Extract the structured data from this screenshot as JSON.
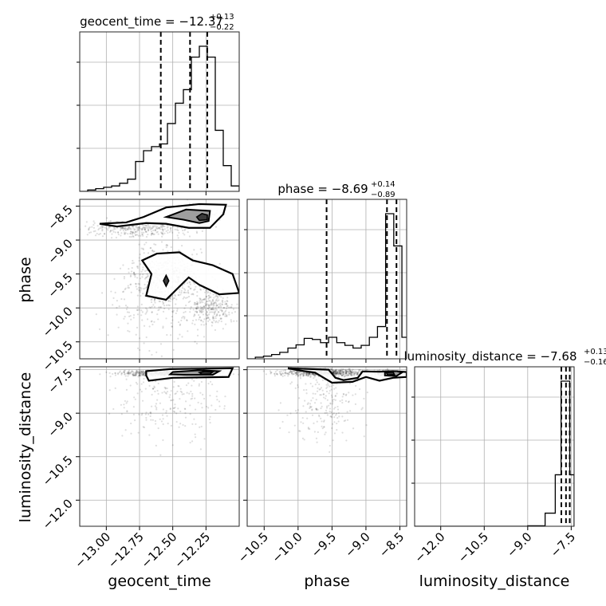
{
  "chart_data": {
    "type": "corner",
    "parameters": [
      "geocent_time",
      "phase",
      "luminosity_distance"
    ],
    "grid": true,
    "titles": [
      {
        "param": "geocent_time",
        "prefix": "geocent_time = ",
        "median": "−12.37",
        "plus": "+0.13",
        "minus": "−0.22"
      },
      {
        "param": "phase",
        "prefix": "phase = ",
        "median": "−8.69",
        "plus": "+0.14",
        "minus": "−0.89"
      },
      {
        "param": "luminosity_distance",
        "prefix": "luminosity_distance = ",
        "median": "−7.68",
        "plus": "+0.13",
        "minus": "−0.16"
      }
    ],
    "axes": {
      "geocent_time": {
        "range": [
          -13.2,
          -12.0
        ],
        "ticks": [
          -13.0,
          -12.75,
          -12.5,
          -12.25
        ],
        "tick_labels": [
          "−13.00",
          "−12.75",
          "−12.50",
          "−12.25"
        ],
        "label": "geocent_time"
      },
      "phase": {
        "range": [
          -10.75,
          -8.4
        ],
        "ticks": [
          -10.5,
          -10.0,
          -9.5,
          -9.0,
          -8.5
        ],
        "tick_labels": [
          "−10.5",
          "−10.0",
          "−9.5",
          "−9.0",
          "−8.5"
        ],
        "label": "phase"
      },
      "luminosity_distance": {
        "range": [
          -12.9,
          -7.4
        ],
        "ticks": [
          -12.0,
          -10.5,
          -9.0,
          -7.5
        ],
        "tick_labels": [
          "−12.0",
          "−10.5",
          "−9.0",
          "−7.5"
        ],
        "label": "luminosity_distance"
      }
    },
    "histograms": {
      "geocent_time": {
        "bin_edges": [
          -13.2,
          -13.14,
          -13.08,
          -13.02,
          -12.96,
          -12.9,
          -12.84,
          -12.78,
          -12.72,
          -12.66,
          -12.6,
          -12.54,
          -12.48,
          -12.42,
          -12.36,
          -12.3,
          -12.24,
          -12.18,
          -12.12,
          -12.06,
          -12.0
        ],
        "counts": [
          0,
          1,
          2,
          3,
          4,
          6,
          9,
          22,
          30,
          33,
          35,
          50,
          65,
          75,
          99,
          107,
          99,
          45,
          19,
          4
        ],
        "quantiles": [
          -12.59,
          -12.37,
          -12.24
        ]
      },
      "phase": {
        "bin_edges": [
          -10.75,
          -10.63,
          -10.51,
          -10.39,
          -10.27,
          -10.15,
          -10.03,
          -9.91,
          -9.79,
          -9.67,
          -9.55,
          -9.43,
          -9.31,
          -9.19,
          -9.07,
          -8.95,
          -8.83,
          -8.71,
          -8.59,
          -8.47,
          -8.35
        ],
        "counts": [
          0,
          3,
          5,
          8,
          12,
          20,
          26,
          38,
          36,
          30,
          40,
          30,
          25,
          20,
          25,
          40,
          60,
          270,
          210,
          40
        ],
        "quantiles": [
          -9.58,
          -8.69,
          -8.55
        ]
      },
      "luminosity_distance": {
        "bin_edges": [
          -12.9,
          -9.0,
          -8.4,
          -8.05,
          -7.85,
          -7.7,
          -7.55,
          -7.4
        ],
        "counts": [
          0,
          1,
          28,
          110,
          310,
          310,
          110
        ],
        "quantiles": [
          -7.84,
          -7.68,
          -7.55
        ]
      }
    },
    "scatter": {
      "geocent_time_vs_phase": {
        "clusters": [
          {
            "center": [
              -12.75,
              -8.83
            ],
            "spread": [
              0.28,
              0.1
            ],
            "n": 320
          },
          {
            "center": [
              -12.33,
              -8.65
            ],
            "spread": [
              0.14,
              0.14
            ],
            "n": 260
          },
          {
            "center": [
              -12.55,
              -9.55
            ],
            "spread": [
              0.22,
              0.38
            ],
            "n": 520
          },
          {
            "center": [
              -12.2,
              -10.0
            ],
            "spread": [
              0.14,
              0.22
            ],
            "n": 260
          },
          {
            "center": [
              -12.6,
              -10.0
            ],
            "spread": [
              0.35,
              0.5
            ],
            "n": 180
          }
        ]
      },
      "geocent_time_vs_luminosity_distance": {
        "clusters": [
          {
            "center": [
              -12.5,
              -7.62
            ],
            "spread": [
              0.3,
              0.08
            ],
            "n": 900
          },
          {
            "center": [
              -12.5,
              -8.6
            ],
            "spread": [
              0.35,
              1.1
            ],
            "n": 220
          }
        ]
      },
      "phase_vs_luminosity_distance": {
        "clusters": [
          {
            "center": [
              -9.6,
              -7.6
            ],
            "spread": [
              0.55,
              0.1
            ],
            "n": 700
          },
          {
            "center": [
              -8.7,
              -7.62
            ],
            "spread": [
              0.15,
              0.08
            ],
            "n": 300
          },
          {
            "center": [
              -9.6,
              -8.6
            ],
            "spread": [
              0.45,
              1.1
            ],
            "n": 220
          }
        ]
      }
    },
    "contours": {
      "geocent_time_vs_phase": [
        {
          "level": "outer",
          "polygon": [
            [
              -13.05,
              -8.76
            ],
            [
              -12.85,
              -8.74
            ],
            [
              -12.72,
              -8.66
            ],
            [
              -12.55,
              -8.52
            ],
            [
              -12.3,
              -8.47
            ],
            [
              -12.1,
              -8.48
            ],
            [
              -12.12,
              -8.62
            ],
            [
              -12.22,
              -8.82
            ],
            [
              -12.38,
              -8.82
            ],
            [
              -12.55,
              -8.76
            ],
            [
              -12.7,
              -8.75
            ],
            [
              -12.92,
              -8.8
            ]
          ]
        },
        {
          "level": "outer",
          "polygon": [
            [
              -12.62,
              -9.2
            ],
            [
              -12.45,
              -9.18
            ],
            [
              -12.35,
              -9.3
            ],
            [
              -12.2,
              -9.37
            ],
            [
              -12.05,
              -9.5
            ],
            [
              -12.0,
              -9.78
            ],
            [
              -12.15,
              -9.8
            ],
            [
              -12.3,
              -9.66
            ],
            [
              -12.38,
              -9.55
            ],
            [
              -12.55,
              -9.88
            ],
            [
              -12.7,
              -9.82
            ],
            [
              -12.66,
              -9.5
            ],
            [
              -12.73,
              -9.3
            ]
          ]
        },
        {
          "level": "mid",
          "polygon": [
            [
              -12.55,
              -8.66
            ],
            [
              -12.4,
              -8.55
            ],
            [
              -12.22,
              -8.57
            ],
            [
              -12.23,
              -8.72
            ],
            [
              -12.3,
              -8.75
            ],
            [
              -12.42,
              -8.7
            ]
          ]
        },
        {
          "level": "inner",
          "polygon": [
            [
              -12.32,
              -8.66
            ],
            [
              -12.28,
              -8.61
            ],
            [
              -12.24,
              -8.63
            ],
            [
              -12.24,
              -8.7
            ],
            [
              -12.3,
              -8.71
            ]
          ]
        },
        {
          "level": "inner",
          "polygon": [
            [
              -12.57,
              -9.6
            ],
            [
              -12.55,
              -9.52
            ],
            [
              -12.53,
              -9.6
            ],
            [
              -12.55,
              -9.68
            ]
          ]
        }
      ],
      "geocent_time_vs_luminosity_distance": [
        {
          "level": "outer",
          "polygon": [
            [
              -12.7,
              -7.55
            ],
            [
              -12.52,
              -7.48
            ],
            [
              -12.05,
              -7.45
            ],
            [
              -12.08,
              -7.75
            ],
            [
              -12.5,
              -7.78
            ],
            [
              -12.68,
              -7.88
            ],
            [
              -12.7,
              -7.7
            ]
          ]
        },
        {
          "level": "mid",
          "polygon": [
            [
              -12.5,
              -7.58
            ],
            [
              -12.3,
              -7.52
            ],
            [
              -12.15,
              -7.55
            ],
            [
              -12.2,
              -7.68
            ],
            [
              -12.4,
              -7.68
            ],
            [
              -12.52,
              -7.66
            ]
          ]
        },
        {
          "level": "inner",
          "polygon": [
            [
              -12.3,
              -7.6
            ],
            [
              -12.26,
              -7.56
            ],
            [
              -12.2,
              -7.58
            ],
            [
              -12.22,
              -7.65
            ],
            [
              -12.28,
              -7.66
            ]
          ]
        }
      ],
      "phase_vs_luminosity_distance": [
        {
          "level": "outer",
          "polygon": [
            [
              -10.15,
              -7.45
            ],
            [
              -9.55,
              -7.5
            ],
            [
              -9.45,
              -7.78
            ],
            [
              -9.33,
              -7.86
            ],
            [
              -9.12,
              -7.78
            ],
            [
              -9.05,
              -7.56
            ],
            [
              -8.8,
              -7.57
            ],
            [
              -8.6,
              -7.55
            ],
            [
              -8.4,
              -7.58
            ],
            [
              -8.4,
              -7.75
            ],
            [
              -8.6,
              -7.78
            ],
            [
              -8.8,
              -7.88
            ],
            [
              -9.0,
              -7.75
            ],
            [
              -9.2,
              -7.92
            ],
            [
              -9.5,
              -7.95
            ],
            [
              -9.75,
              -7.6
            ],
            [
              -10.0,
              -7.52
            ]
          ]
        },
        {
          "level": "mid",
          "polygon": [
            [
              -8.72,
              -7.57
            ],
            [
              -8.55,
              -7.55
            ],
            [
              -8.47,
              -7.6
            ],
            [
              -8.55,
              -7.72
            ],
            [
              -8.72,
              -7.7
            ]
          ]
        },
        {
          "level": "inner",
          "polygon": [
            [
              -8.7,
              -7.6
            ],
            [
              -8.6,
              -7.58
            ],
            [
              -8.58,
              -7.67
            ],
            [
              -8.68,
              -7.68
            ]
          ]
        }
      ]
    }
  }
}
